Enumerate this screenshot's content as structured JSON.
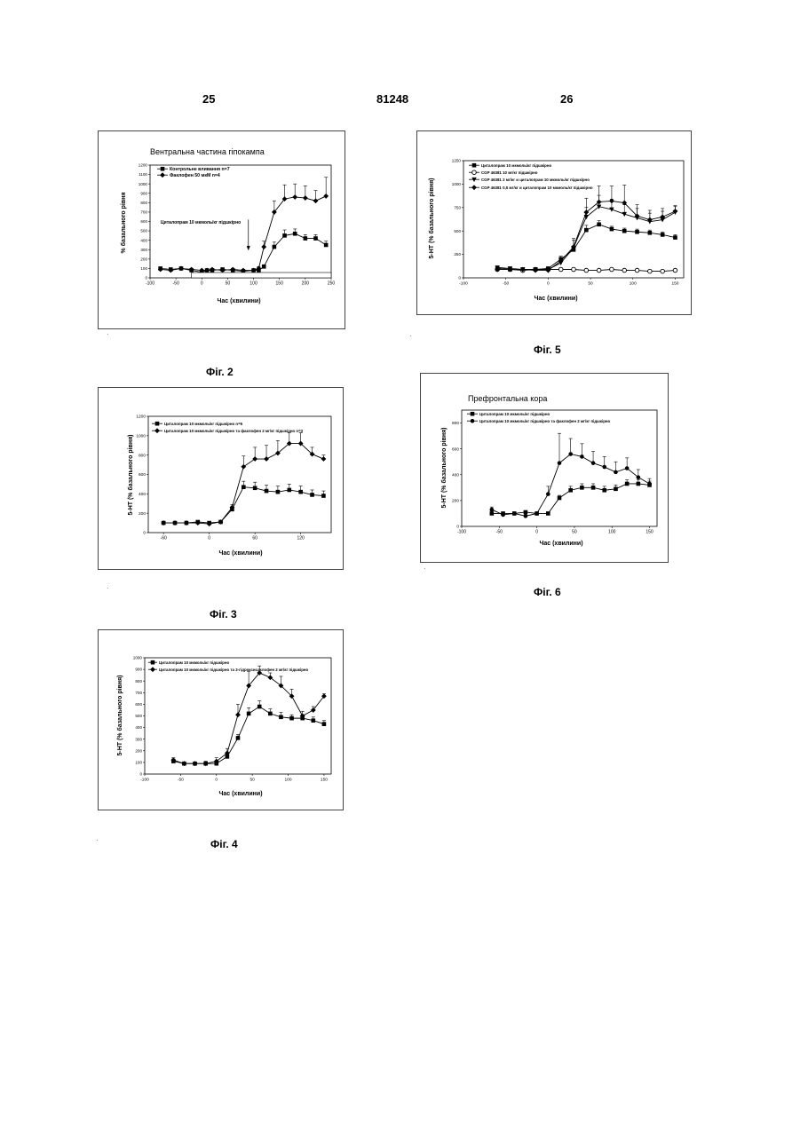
{
  "page": {
    "left_page_number": "25",
    "patent_number": "81248",
    "right_page_number": "26"
  },
  "captions": {
    "fig2": "Фіг. 2",
    "fig3": "Фіг. 3",
    "fig4": "Фіг. 4",
    "fig5": "Фіг. 5",
    "fig6": "Фіг. 6"
  },
  "chart_data": [
    {
      "id": "fig2",
      "type": "line",
      "title": "Вентральна частина гіпокампа",
      "xlabel": "Час (хвилини)",
      "ylabel": "% базального рівня",
      "xlim": [
        -100,
        250
      ],
      "ylim": [
        0,
        1200
      ],
      "xticks": [
        -100,
        -50,
        0,
        50,
        100,
        150,
        200,
        250
      ],
      "yticks": [
        0,
        100,
        200,
        300,
        400,
        500,
        600,
        700,
        800,
        900,
        1000,
        1100,
        1200
      ],
      "annotation": "Циталопрам 10 мкмоль/кг підшкірно",
      "infusion_bar": "Вливання факлофену",
      "infusion_range": [
        -20,
        250
      ],
      "arrow_x": 90,
      "series": [
        {
          "name": "Контрольне вливання n=7",
          "marker": "square",
          "x": [
            -80,
            -60,
            -40,
            -20,
            0,
            10,
            20,
            40,
            60,
            80,
            100,
            110,
            120,
            140,
            160,
            180,
            200,
            220,
            240
          ],
          "y": [
            100,
            90,
            100,
            80,
            60,
            80,
            80,
            90,
            80,
            70,
            80,
            80,
            120,
            330,
            450,
            470,
            420,
            420,
            350
          ],
          "err": [
            10,
            10,
            10,
            10,
            10,
            10,
            10,
            10,
            10,
            10,
            10,
            10,
            20,
            50,
            60,
            50,
            40,
            40,
            40
          ]
        },
        {
          "name": "Факлофен 50 мкМ n=4",
          "marker": "diamond",
          "x": [
            -80,
            -60,
            -40,
            -20,
            0,
            10,
            20,
            40,
            60,
            80,
            100,
            110,
            120,
            140,
            160,
            180,
            200,
            220,
            240
          ],
          "y": [
            90,
            80,
            100,
            90,
            80,
            80,
            90,
            80,
            90,
            80,
            80,
            100,
            330,
            700,
            840,
            860,
            850,
            820,
            870
          ],
          "err": [
            10,
            10,
            10,
            10,
            10,
            10,
            10,
            10,
            10,
            10,
            10,
            20,
            60,
            120,
            150,
            140,
            130,
            110,
            200
          ]
        }
      ]
    },
    {
      "id": "fig5",
      "type": "line",
      "title": "",
      "xlabel": "Час (хвилини)",
      "ylabel": "5-HT (% базального рівня)",
      "xlim": [
        -100,
        160
      ],
      "ylim": [
        0,
        1250
      ],
      "xticks": [
        -100,
        -50,
        0,
        50,
        100,
        150
      ],
      "yticks": [
        0,
        250,
        500,
        750,
        1000,
        1250
      ],
      "series": [
        {
          "name": "Циталопрам 10 мкмоль/кг підшкірно",
          "marker": "square",
          "x": [
            -60,
            -45,
            -30,
            -15,
            0,
            15,
            30,
            45,
            60,
            75,
            90,
            105,
            120,
            135,
            150
          ],
          "y": [
            100,
            90,
            90,
            90,
            100,
            200,
            300,
            510,
            570,
            520,
            500,
            490,
            480,
            460,
            430
          ],
          "err": [
            10,
            10,
            10,
            10,
            10,
            30,
            40,
            50,
            40,
            30,
            30,
            30,
            30,
            30,
            30
          ]
        },
        {
          "name": "CGP 46381 10 мг/кг підшкірно",
          "marker": "circle-open",
          "x": [
            -60,
            -45,
            -30,
            -15,
            0,
            15,
            30,
            45,
            60,
            75,
            90,
            105,
            120,
            135,
            150
          ],
          "y": [
            90,
            90,
            80,
            90,
            90,
            90,
            90,
            80,
            80,
            90,
            80,
            80,
            70,
            70,
            80
          ],
          "err": [
            10,
            10,
            10,
            10,
            10,
            10,
            10,
            10,
            10,
            10,
            10,
            10,
            10,
            10,
            10
          ]
        },
        {
          "name": "CGP 46381 2 мг/кг и циталопрам 10 мкмоль/кг підшкірно",
          "marker": "triangle-down",
          "x": [
            -60,
            -45,
            -30,
            -15,
            0,
            15,
            30,
            45,
            60,
            75,
            90,
            105,
            120,
            135,
            150
          ],
          "y": [
            110,
            100,
            90,
            90,
            90,
            160,
            320,
            650,
            760,
            730,
            680,
            640,
            600,
            620,
            700
          ],
          "err": [
            10,
            10,
            10,
            10,
            10,
            40,
            80,
            100,
            120,
            110,
            100,
            100,
            90,
            90,
            60
          ]
        },
        {
          "name": "CGP 46381 0,5 мг/кг и циталопрам 10 мкмоль/кг підшкірно",
          "marker": "diamond",
          "x": [
            -60,
            -45,
            -30,
            -15,
            0,
            15,
            30,
            45,
            60,
            75,
            90,
            105,
            120,
            135,
            150
          ],
          "y": [
            90,
            90,
            90,
            80,
            80,
            180,
            330,
            700,
            810,
            820,
            800,
            660,
            620,
            650,
            710
          ],
          "err": [
            10,
            10,
            10,
            10,
            10,
            50,
            90,
            150,
            170,
            160,
            190,
            120,
            100,
            90,
            60
          ]
        }
      ]
    },
    {
      "id": "fig3",
      "type": "line",
      "title": "",
      "xlabel": "Час (хвилини)",
      "ylabel": "5-HT (% базального рівня)",
      "xlim": [
        -80,
        160
      ],
      "ylim": [
        0,
        1200
      ],
      "xticks": [
        -60,
        0,
        60,
        120
      ],
      "yticks": [
        0,
        200,
        400,
        600,
        800,
        1000,
        1200
      ],
      "series": [
        {
          "name": "Циталопрам 10 мкмоль/кг підшкірно n=6",
          "marker": "square",
          "x": [
            -60,
            -45,
            -30,
            -15,
            0,
            15,
            30,
            45,
            60,
            75,
            90,
            105,
            120,
            135,
            150
          ],
          "y": [
            100,
            100,
            100,
            110,
            100,
            110,
            240,
            470,
            460,
            430,
            420,
            440,
            420,
            390,
            380
          ],
          "err": [
            10,
            10,
            10,
            10,
            10,
            10,
            30,
            60,
            60,
            60,
            60,
            60,
            60,
            50,
            50
          ]
        },
        {
          "name": "Циталопрам 10 мкмоль/кг підшкірно та факлофен 2 мг/кг підшкірно n=3",
          "marker": "diamond",
          "x": [
            -60,
            -45,
            -30,
            -15,
            0,
            15,
            30,
            45,
            60,
            75,
            90,
            105,
            120,
            135,
            150
          ],
          "y": [
            100,
            100,
            100,
            100,
            90,
            110,
            260,
            680,
            760,
            760,
            820,
            920,
            920,
            810,
            760
          ],
          "err": [
            10,
            10,
            10,
            10,
            10,
            10,
            30,
            110,
            120,
            140,
            130,
            110,
            110,
            70,
            40
          ]
        }
      ]
    },
    {
      "id": "fig6",
      "type": "line",
      "title": "Префронтальна кора",
      "xlabel": "Час (хвилини)",
      "ylabel": "5-HT (% базального рівня)",
      "xlim": [
        -100,
        160
      ],
      "ylim": [
        0,
        900
      ],
      "xticks": [
        -100,
        -50,
        0,
        50,
        100,
        150
      ],
      "yticks": [
        0,
        200,
        400,
        600,
        800
      ],
      "series": [
        {
          "name": "Циталопрам 10 мкмоль/кг підшкірно",
          "marker": "square",
          "x": [
            -60,
            -45,
            -30,
            -15,
            0,
            15,
            30,
            45,
            60,
            75,
            90,
            105,
            120,
            135,
            150
          ],
          "y": [
            100,
            100,
            100,
            110,
            100,
            100,
            220,
            280,
            300,
            300,
            280,
            290,
            330,
            330,
            320
          ],
          "err": [
            20,
            10,
            10,
            10,
            10,
            10,
            20,
            30,
            30,
            30,
            30,
            30,
            30,
            30,
            30
          ]
        },
        {
          "name": "Циталопрам 10 мкмоль/кг підшкірно та факлофен 2 мг/кг підшкірно",
          "marker": "circle",
          "x": [
            -60,
            -45,
            -30,
            -15,
            0,
            15,
            30,
            45,
            60,
            75,
            90,
            105,
            120,
            135,
            150
          ],
          "y": [
            130,
            90,
            100,
            80,
            100,
            250,
            490,
            560,
            540,
            490,
            460,
            420,
            450,
            380,
            330
          ],
          "err": [
            20,
            10,
            10,
            10,
            10,
            60,
            230,
            120,
            100,
            90,
            80,
            80,
            80,
            60,
            40
          ]
        }
      ]
    },
    {
      "id": "fig4",
      "type": "line",
      "title": "",
      "xlabel": "Час (хвилини)",
      "ylabel": "5-HT (% базального рівня)",
      "xlim": [
        -100,
        160
      ],
      "ylim": [
        0,
        1000
      ],
      "xticks": [
        -100,
        -50,
        0,
        50,
        100,
        150
      ],
      "yticks": [
        0,
        100,
        200,
        300,
        400,
        500,
        600,
        700,
        800,
        900,
        1000
      ],
      "series": [
        {
          "name": "Циталопрам 10 мкмоль/кг підшкірно",
          "marker": "square",
          "x": [
            -60,
            -45,
            -30,
            -15,
            0,
            15,
            30,
            45,
            60,
            75,
            90,
            105,
            120,
            135,
            150
          ],
          "y": [
            110,
            90,
            90,
            90,
            90,
            150,
            310,
            520,
            580,
            520,
            490,
            480,
            480,
            460,
            430
          ],
          "err": [
            20,
            10,
            10,
            10,
            10,
            20,
            30,
            50,
            50,
            40,
            40,
            30,
            30,
            30,
            30
          ]
        },
        {
          "name": "Циталопрам 10 мкмоль/кг підшкірно та 2-гідроксисаклофен 2 мг/кг підшкірно",
          "marker": "diamond",
          "x": [
            -60,
            -45,
            -30,
            -15,
            0,
            15,
            30,
            45,
            60,
            75,
            90,
            105,
            120,
            135,
            150
          ],
          "y": [
            120,
            90,
            90,
            90,
            110,
            180,
            510,
            760,
            870,
            830,
            760,
            670,
            500,
            550,
            670
          ],
          "err": [
            20,
            10,
            10,
            20,
            30,
            40,
            90,
            120,
            60,
            40,
            80,
            60,
            40,
            30,
            20
          ]
        }
      ]
    }
  ]
}
